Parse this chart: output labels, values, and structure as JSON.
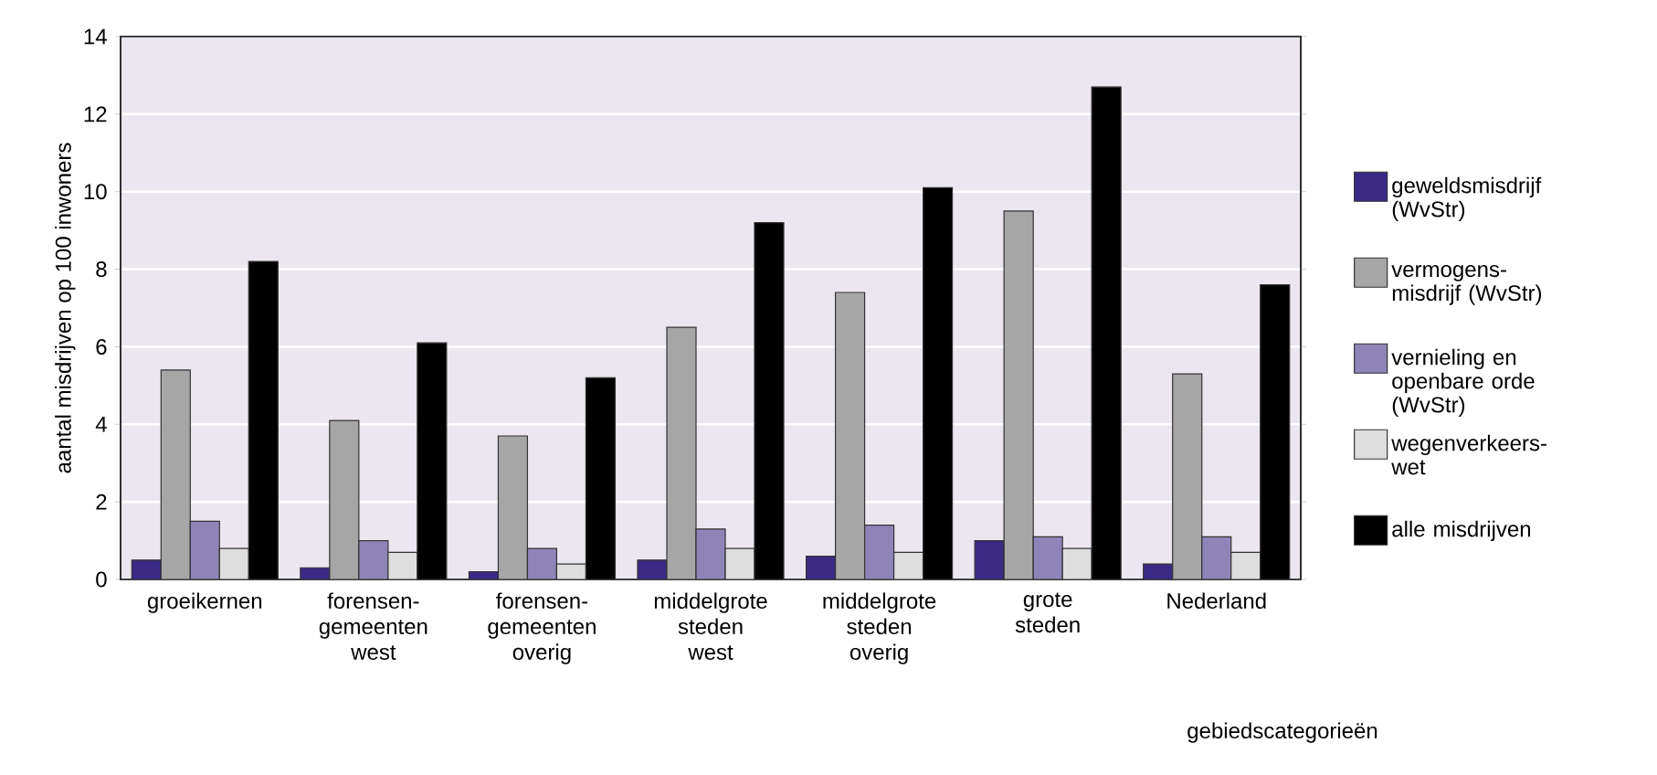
{
  "chart_data": {
    "type": "bar",
    "xlabel": "gebiedscategorieën",
    "ylabel": "aantal misdrijven op 100 inwoners",
    "categories": [
      "groeikernen",
      "forensen-gemeenten west",
      "forensen-gemeenten overig",
      "middelgrote steden west",
      "middelgrote steden overig",
      "grote steden",
      "Nederland"
    ],
    "series": [
      {
        "name": "geweldsmisdrijf (WvStr)",
        "color": "#3a2a85",
        "values": [
          0.5,
          0.3,
          0.2,
          0.5,
          0.6,
          1.0,
          0.4
        ]
      },
      {
        "name": "vermogens-misdrijf (WvStr)",
        "color": "#a6a6a6",
        "values": [
          5.4,
          4.1,
          3.7,
          6.5,
          7.4,
          9.5,
          5.3
        ]
      },
      {
        "name": "vernieling en openbare orde (WvStr)",
        "color": "#8f84b8",
        "values": [
          1.5,
          1.0,
          0.8,
          1.3,
          1.4,
          1.1,
          1.1
        ]
      },
      {
        "name": "wegenverkeers-wet",
        "color": "#dedede",
        "values": [
          0.8,
          0.7,
          0.4,
          0.8,
          0.7,
          0.8,
          0.7
        ]
      },
      {
        "name": "alle misdrijven",
        "color": "#000000",
        "values": [
          8.2,
          6.1,
          5.2,
          9.2,
          10.1,
          12.7,
          7.6
        ]
      }
    ],
    "ylim": [
      0,
      14
    ],
    "yticks": [
      0,
      2,
      4,
      6,
      8,
      10,
      12,
      14
    ],
    "grid": "y",
    "legend": "right"
  }
}
